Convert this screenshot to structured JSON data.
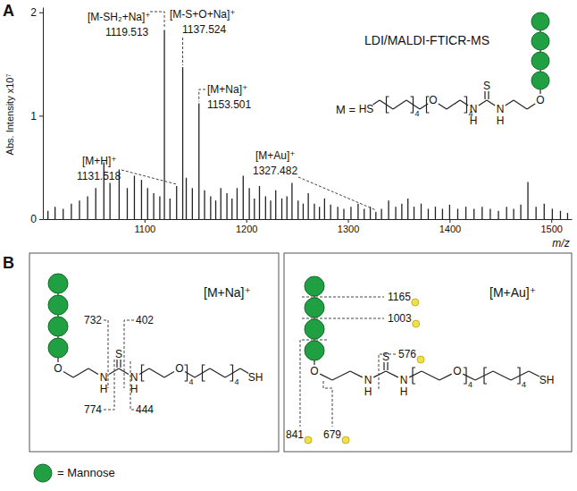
{
  "chart_data": {
    "type": "stem",
    "title": "LDI/MALDI-FTICR-MS",
    "x_label": "m/z",
    "y_label": "Abs. Intensity x10⁷",
    "color": "#222222",
    "x": [
      1005,
      1012,
      1020,
      1028,
      1036,
      1044,
      1052,
      1060,
      1066,
      1075,
      1083,
      1090,
      1097,
      1103,
      1109,
      1115,
      1119.513,
      1125,
      1131.518,
      1137.524,
      1141,
      1147,
      1153.501,
      1159,
      1165,
      1170,
      1175,
      1181,
      1186,
      1191,
      1197,
      1203,
      1208,
      1213,
      1219,
      1224,
      1229,
      1235,
      1240,
      1245,
      1251,
      1256,
      1261,
      1267,
      1272,
      1277,
      1283,
      1290,
      1296,
      1303,
      1310,
      1316,
      1322,
      1327.482,
      1333,
      1340,
      1347,
      1353,
      1359,
      1365,
      1372,
      1379,
      1386,
      1393,
      1400,
      1408,
      1416,
      1424,
      1432,
      1440,
      1448,
      1456,
      1463,
      1470,
      1477,
      1485,
      1493,
      1501,
      1509,
      1516
    ],
    "values": [
      0.08,
      0.12,
      0.1,
      0.15,
      0.18,
      0.22,
      0.3,
      0.55,
      0.35,
      0.48,
      0.3,
      0.42,
      0.38,
      0.3,
      0.25,
      0.22,
      1.83,
      0.2,
      0.32,
      1.47,
      0.4,
      0.3,
      1.12,
      0.28,
      0.22,
      0.18,
      0.3,
      0.25,
      0.2,
      0.3,
      0.42,
      0.3,
      0.2,
      0.32,
      0.22,
      0.18,
      0.28,
      0.2,
      0.22,
      0.35,
      0.18,
      0.15,
      0.25,
      0.15,
      0.12,
      0.2,
      0.14,
      0.12,
      0.1,
      0.12,
      0.15,
      0.1,
      0.12,
      0.07,
      0.1,
      0.18,
      0.12,
      0.15,
      0.2,
      0.12,
      0.15,
      0.1,
      0.12,
      0.1,
      0.14,
      0.1,
      0.12,
      0.1,
      0.12,
      0.1,
      0.08,
      0.12,
      0.1,
      0.14,
      0.36,
      0.12,
      0.15,
      0.1,
      0.08,
      0.06
    ],
    "xlim": [
      1000,
      1520
    ],
    "ylim": [
      0,
      2.05
    ],
    "xticks": [
      1100,
      1200,
      1300,
      1400,
      1500
    ],
    "yticks": [
      0,
      1,
      2
    ],
    "annotations": [
      {
        "label": "[M-SH₂+Na]⁺",
        "x": 1119.513
      },
      {
        "label": "[M-S+O+Na]⁺",
        "x": 1137.524
      },
      {
        "label": "[M+Na]⁺",
        "x": 1153.501
      },
      {
        "label": "[M+H]⁺",
        "x": 1131.518
      },
      {
        "label": "[M+Au]⁺",
        "x": 1327.482
      }
    ]
  },
  "panel_labels": [
    "A",
    "B"
  ],
  "structure_a": {
    "prefix": "M =",
    "atoms": [
      "O",
      "N",
      "H",
      "S",
      "N",
      "H",
      "O",
      "4",
      "4",
      "HS"
    ]
  },
  "panel_b": [
    {
      "ion": "[M+Na]⁺",
      "atoms": [
        "O",
        "N",
        "H",
        "S",
        "N",
        "H",
        "O",
        "4",
        "4",
        "SH"
      ],
      "fragments": [
        732,
        402,
        774,
        444
      ]
    },
    {
      "ion": "[M+Au]⁺",
      "atoms": [
        "O",
        "N",
        "H",
        "S",
        "N",
        "H",
        "O",
        "4",
        "4",
        "SH"
      ],
      "fragments": [
        1165,
        1003,
        576,
        841,
        679
      ]
    }
  ],
  "legend": {
    "label": "= Mannose"
  }
}
